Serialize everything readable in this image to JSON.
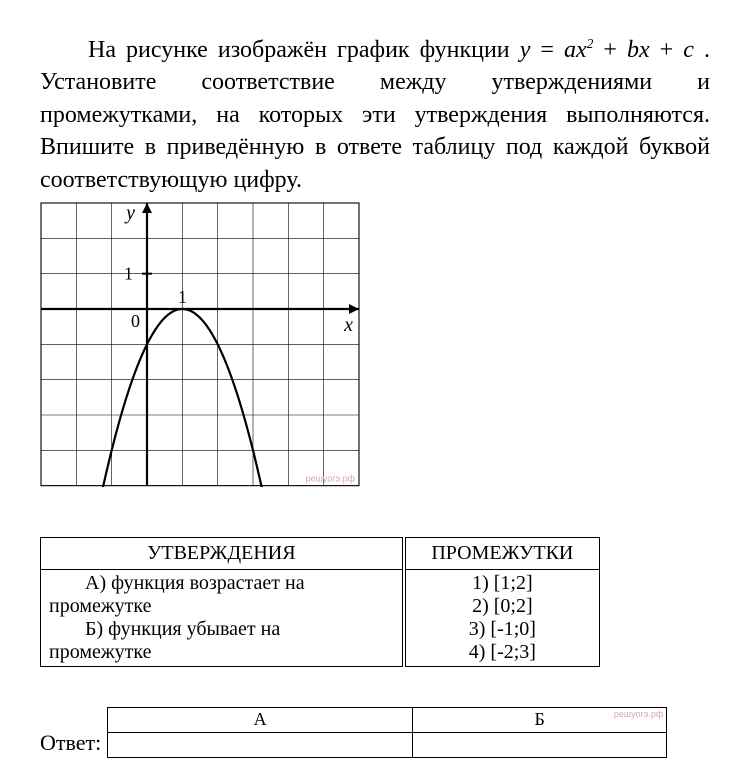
{
  "problem": {
    "prefix": "На рисунке изображён график функции ",
    "func_y": "y",
    "func_eq": " = ",
    "func_a": "a",
    "func_x": "x",
    "func_sq": "2",
    "func_plus1": " + ",
    "func_b": "b",
    "func_x2": "x",
    "func_plus2": " + ",
    "func_c": "c",
    "suffix": " . Установите соответствие между утверждениями и промежутками, на которых эти утверждения выполняются. Впишите в приведённую в ответе таблицу под каждой буквой соответствующую цифру."
  },
  "chart": {
    "type": "parabola",
    "grid": {
      "x_min": -3,
      "x_max": 6,
      "y_min": -5,
      "y_max": 3,
      "step": 1
    },
    "axes": {
      "x_label": "x",
      "y_label": "y",
      "origin_label": "0",
      "tick_x": "1",
      "tick_y": "1"
    },
    "curve": {
      "a": -1,
      "h": 1,
      "k": 0
    },
    "line_width": 2.2,
    "grid_color": "#000000",
    "grid_width": 0.6,
    "axis_width": 2.2,
    "watermark": "решуогэ.рф"
  },
  "match_table": {
    "head_statements": "УТВЕРЖДЕНИЯ",
    "head_intervals": "ПРОМЕЖУТКИ",
    "statements": [
      {
        "label": "А) функция возрастает на",
        "cont": "промежутке"
      },
      {
        "label": "Б) функция убывает на",
        "cont": "промежутке"
      }
    ],
    "intervals": [
      "1) [1;2]",
      "2) [0;2]",
      "3) [-1;0]",
      "4) [-2;3]"
    ]
  },
  "answer": {
    "label": "Ответ:",
    "cols": [
      "А",
      "Б"
    ],
    "values": [
      "",
      ""
    ],
    "watermark": "решуогэ.рф"
  }
}
